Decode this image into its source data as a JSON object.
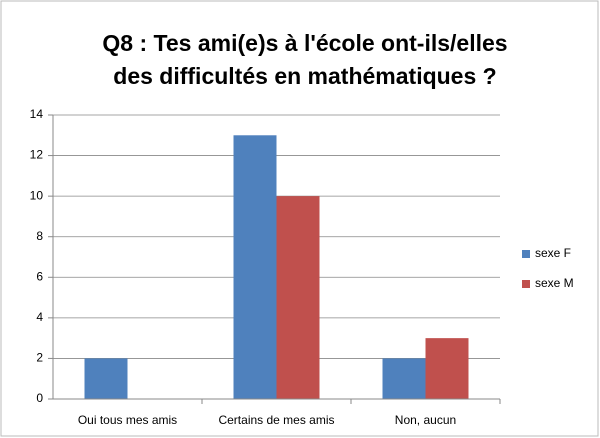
{
  "chart_data": {
    "type": "bar",
    "title": [
      "Q8 : Tes ami(e)s à l'école ont-ils/elles",
      "des difficultés en mathématiques ?"
    ],
    "categories": [
      "Oui tous mes amis",
      "Certains de mes amis",
      "Non, aucun"
    ],
    "series": [
      {
        "name": "sexe F",
        "color": "#4f81bd",
        "values": [
          2,
          13,
          2
        ]
      },
      {
        "name": "sexe M",
        "color": "#c0504d",
        "values": [
          0,
          10,
          3
        ]
      }
    ],
    "ylim": [
      0,
      14
    ],
    "yticks": [
      0,
      2,
      4,
      6,
      8,
      10,
      12,
      14
    ],
    "grid": true,
    "legend": "right"
  }
}
